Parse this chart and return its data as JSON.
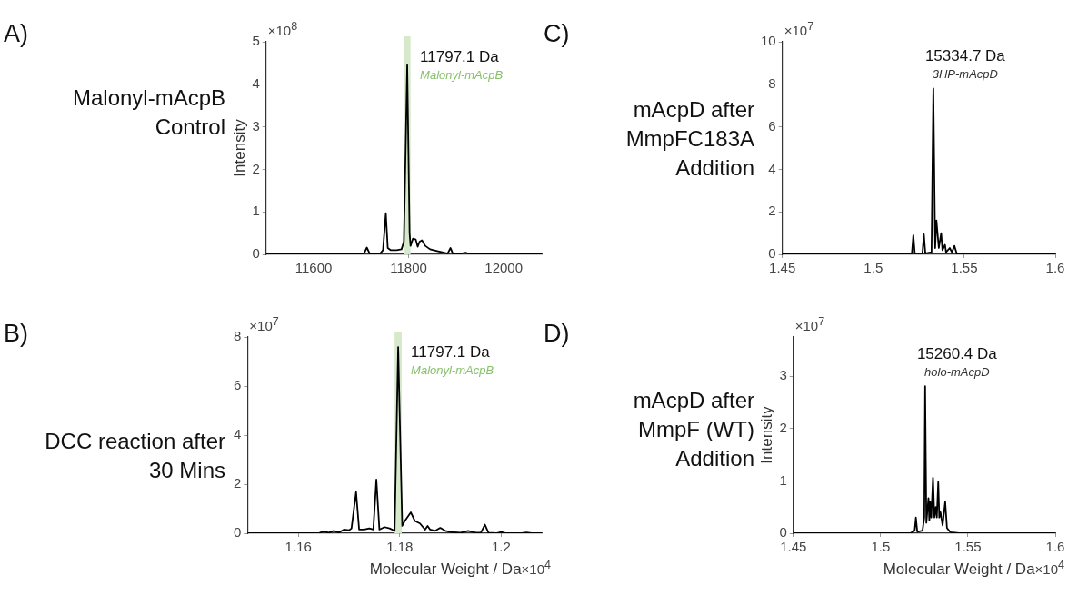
{
  "chart_data": [
    {
      "type": "line",
      "subtitle": "Malonyl-mAcpB Control",
      "ylabel": "Intensity",
      "xlim": [
        11500,
        12080
      ],
      "xticks": [
        11600,
        11800,
        12000
      ],
      "ylim": [
        0,
        5
      ],
      "yticks": [
        0,
        1,
        2,
        3,
        4,
        5
      ],
      "grid": false,
      "legend": false,
      "marker": "none",
      "bands": [
        {
          "axis": "x",
          "from": 11790,
          "to": 11804,
          "color": "#d6eacb"
        }
      ],
      "annotations": [
        "A)",
        "×10$^{8}$",
        {
          "text": "11797.1 Da",
          "x": 11797.1,
          "y": 4.45
        },
        "Malonyl-mAcpB"
      ],
      "series": [
        {
          "color": "#000000",
          "x": [
            11500,
            11700,
            11706,
            11712,
            11718,
            11740,
            11746,
            11752,
            11756,
            11762,
            11775,
            11785,
            11790,
            11797,
            11802,
            11804,
            11809,
            11815,
            11819,
            11823,
            11828,
            11835,
            11845,
            11860,
            11875,
            11882,
            11888,
            11893,
            11910,
            11920,
            11930,
            11960,
            12000,
            12070,
            12080
          ],
          "values": [
            0,
            0,
            0.02,
            0.16,
            0.02,
            0.02,
            0.1,
            0.97,
            0.15,
            0.1,
            0.1,
            0.12,
            0.3,
            4.45,
            0.5,
            0.2,
            0.37,
            0.35,
            0.18,
            0.3,
            0.33,
            0.2,
            0.12,
            0.08,
            0.04,
            0.02,
            0.15,
            0.02,
            0.02,
            0.04,
            0,
            0.01,
            0,
            0.02,
            0
          ]
        }
      ]
    },
    {
      "type": "line",
      "subtitle": "DCC reaction after 30 Mins",
      "xlabel": "Molecular Weight / Da",
      "xlim": [
        1.15,
        1.208
      ],
      "xticks": [
        1.16,
        1.18,
        1.2
      ],
      "ylim": [
        0,
        8
      ],
      "yticks": [
        0,
        2,
        4,
        6,
        8
      ],
      "grid": false,
      "legend": false,
      "marker": "none",
      "bands": [
        {
          "axis": "x",
          "from": 1.179,
          "to": 1.1804,
          "color": "#d6eacb"
        }
      ],
      "annotations": [
        "B)",
        "×10$^{7}$",
        {
          "text": "11797.1 Da",
          "x": 1.1797,
          "y": 7.59
        },
        "Malonyl-mAcpB",
        "×10$^{4}$"
      ],
      "series": [
        {
          "color": "#000000",
          "x": [
            1.15,
            1.164,
            1.165,
            1.166,
            1.167,
            1.168,
            1.169,
            1.17,
            1.1705,
            1.1714,
            1.172,
            1.173,
            1.174,
            1.1748,
            1.1754,
            1.176,
            1.177,
            1.178,
            1.179,
            1.1797,
            1.1805,
            1.181,
            1.1822,
            1.183,
            1.184,
            1.185,
            1.1855,
            1.186,
            1.187,
            1.188,
            1.189,
            1.19,
            1.192,
            1.1935,
            1.195,
            1.196,
            1.1968,
            1.1975,
            1.199,
            1.2,
            1.201,
            1.204,
            1.205,
            1.206,
            1.208
          ],
          "values": [
            0,
            0,
            0.08,
            0.02,
            0.1,
            0.03,
            0.15,
            0.12,
            0.2,
            1.68,
            0.15,
            0.15,
            0.2,
            0.15,
            2.19,
            0.15,
            0.25,
            0.2,
            0.1,
            7.59,
            0.3,
            0.5,
            0.85,
            0.5,
            0.4,
            0.15,
            0.3,
            0.15,
            0.1,
            0.22,
            0.1,
            0.05,
            0.02,
            0.1,
            0.02,
            0.02,
            0.35,
            0.02,
            0,
            0.05,
            0,
            0,
            0.03,
            0,
            0
          ]
        }
      ]
    },
    {
      "type": "line",
      "subtitle": "mAcpD after MmpFC183A Addition",
      "xlim": [
        1.45,
        1.6
      ],
      "xticks": [
        1.45,
        1.5,
        1.55,
        1.6
      ],
      "ylim": [
        0,
        10
      ],
      "yticks": [
        0,
        2,
        4,
        6,
        8,
        10
      ],
      "grid": false,
      "legend": false,
      "marker": "none",
      "annotations": [
        "C)",
        "×10$^{7}$",
        {
          "text": "15334.7 Da",
          "x": 1.533,
          "y": 7.8
        },
        "3HP-mAcpD"
      ],
      "series": [
        {
          "color": "#000000",
          "x": [
            1.45,
            1.52,
            1.5212,
            1.522,
            1.5228,
            1.527,
            1.5278,
            1.5286,
            1.532,
            1.533,
            1.534,
            1.5347,
            1.536,
            1.5373,
            1.538,
            1.5394,
            1.54,
            1.542,
            1.5432,
            1.5446,
            1.546,
            1.55,
            1.6
          ],
          "values": [
            0,
            0,
            0.05,
            0.9,
            0.05,
            0.05,
            0.94,
            0.05,
            0.1,
            7.8,
            0.3,
            1.6,
            0.3,
            1.0,
            0.2,
            0.45,
            0.1,
            0.3,
            0.1,
            0.4,
            0,
            0,
            0
          ]
        }
      ]
    },
    {
      "type": "line",
      "subtitle": "mAcpD after MmpF (WT) Addition",
      "ylabel": "Intensity",
      "xlabel": "Molecular Weight / Da",
      "xlim": [
        1.45,
        1.6
      ],
      "xticks": [
        1.45,
        1.5,
        1.55,
        1.6
      ],
      "ylim": [
        0,
        3.75
      ],
      "yticks": [
        0,
        1,
        2,
        3
      ],
      "grid": false,
      "legend": false,
      "marker": "none",
      "annotations": [
        "D)",
        "×10$^{7}$",
        {
          "text": "15260.4 Da",
          "x": 1.5255,
          "y": 2.81
        },
        "holo-mAcpD",
        "×10$^{4}$"
      ],
      "series": [
        {
          "color": "#000000",
          "x": [
            1.45,
            1.517,
            1.5195,
            1.5202,
            1.521,
            1.524,
            1.525,
            1.5255,
            1.5262,
            1.5274,
            1.5279,
            1.5284,
            1.529,
            1.53,
            1.5308,
            1.5316,
            1.5322,
            1.533,
            1.5336,
            1.5343,
            1.5355,
            1.537,
            1.538,
            1.54,
            1.545,
            1.6
          ],
          "values": [
            0,
            0,
            0.05,
            0.3,
            0.03,
            0.05,
            0.3,
            2.81,
            0.2,
            0.67,
            0.25,
            0.6,
            0.3,
            1.06,
            0.3,
            0.5,
            0.3,
            0.98,
            0.3,
            0.4,
            0.15,
            0.6,
            0.1,
            0.02,
            0,
            0
          ]
        }
      ]
    }
  ]
}
